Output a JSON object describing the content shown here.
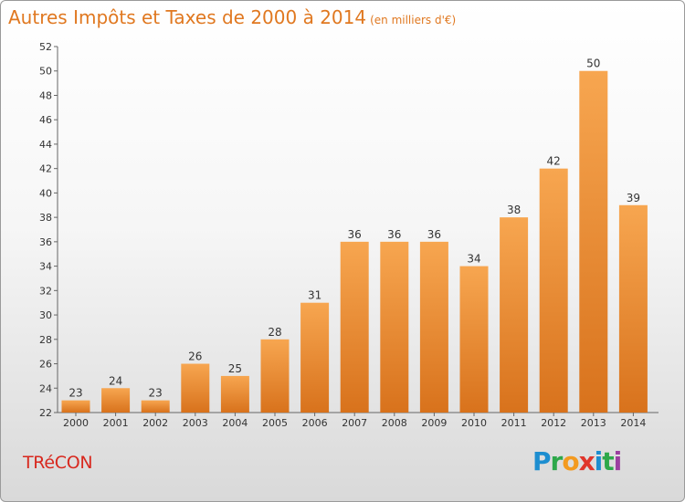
{
  "header": {
    "title": "Autres Impôts et Taxes de 2000 à 2014",
    "unit": "(en milliers d'€)"
  },
  "footer": {
    "commune": "TRéCON",
    "logo": [
      "P",
      "r",
      "o",
      "x",
      "i",
      "t",
      "i"
    ]
  },
  "colors": {
    "bar_light": "#f7a650",
    "bar_dark": "#d8721c",
    "title": "#e07820",
    "commune": "#d8281e"
  },
  "chart_data": {
    "type": "bar",
    "title": "Autres Impôts et Taxes de 2000 à 2014",
    "subtitle": "(en milliers d'€)",
    "xlabel": "",
    "ylabel": "",
    "categories": [
      "2000",
      "2001",
      "2002",
      "2003",
      "2004",
      "2005",
      "2006",
      "2007",
      "2008",
      "2009",
      "2010",
      "2011",
      "2012",
      "2013",
      "2014"
    ],
    "values": [
      23,
      24,
      23,
      26,
      25,
      28,
      31,
      36,
      36,
      36,
      34,
      38,
      42,
      50,
      39
    ],
    "ylim": [
      22,
      52
    ],
    "yticks": [
      22,
      24,
      26,
      28,
      30,
      32,
      34,
      36,
      38,
      40,
      42,
      44,
      46,
      48,
      50,
      52
    ],
    "grid": false,
    "legend": "none"
  }
}
